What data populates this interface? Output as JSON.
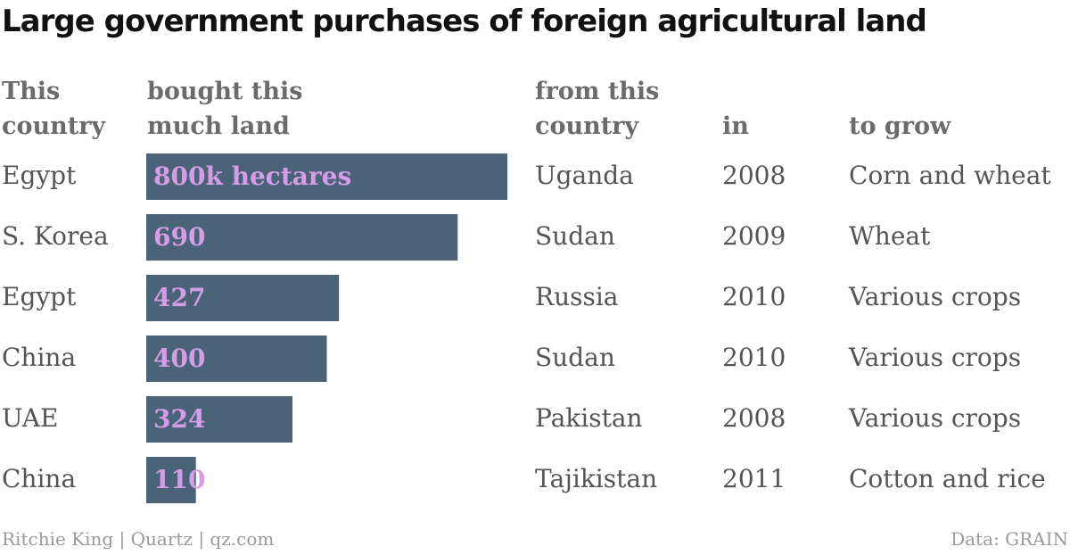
{
  "title": "Large government purchases of foreign agricultural land",
  "headers": {
    "buyer": "This\ncountry",
    "amount": "bought this\nmuch land",
    "seller": "from this\ncountry",
    "year": "in",
    "crop": "to grow"
  },
  "rows": [
    {
      "buyer": "Egypt",
      "seller": "Uganda",
      "year": "2008",
      "crop": "Corn and wheat"
    },
    {
      "buyer": "S. Korea",
      "seller": "Sudan",
      "year": "2009",
      "crop": "Wheat"
    },
    {
      "buyer": "Egypt",
      "seller": "Russia",
      "year": "2010",
      "crop": "Various crops"
    },
    {
      "buyer": "China",
      "seller": "Sudan",
      "year": "2010",
      "crop": "Various crops"
    },
    {
      "buyer": "UAE",
      "seller": "Pakistan",
      "year": "2008",
      "crop": "Various crops"
    },
    {
      "buyer": "China",
      "seller": "Tajikistan",
      "year": "2011",
      "crop": "Cotton and rice"
    }
  ],
  "chart_data": {
    "type": "bar",
    "orientation": "horizontal",
    "categories": [
      "Egypt",
      "S. Korea",
      "Egypt",
      "China",
      "UAE",
      "China"
    ],
    "values": [
      800,
      690,
      427,
      400,
      324,
      110
    ],
    "value_labels": [
      "800k hectares",
      "690",
      "427",
      "400",
      "324",
      "110"
    ],
    "unit": "thousand hectares",
    "xlim": [
      0,
      800
    ],
    "bar_color": "#4b6379",
    "label_color": "#d59de6",
    "grid": false,
    "legend": "none"
  },
  "footer": {
    "credit": "Ritchie King | Quartz | qz.com",
    "source": "Data: GRAIN"
  }
}
